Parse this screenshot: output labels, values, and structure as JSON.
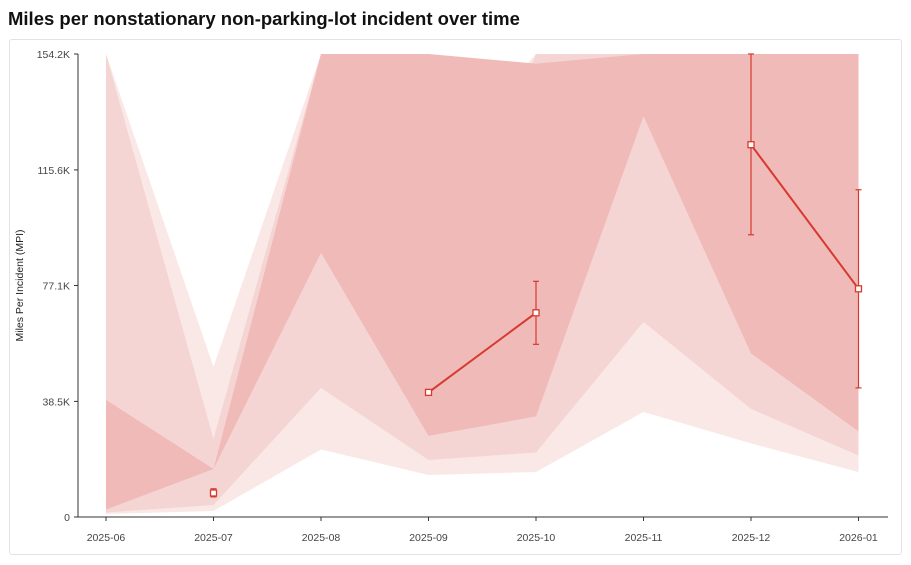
{
  "page": {
    "title": "Miles per nonstationary non-parking-lot incident over time"
  },
  "chart_data": {
    "type": "line",
    "title": "Miles per nonstationary non-parking-lot incident over time",
    "xlabel": "",
    "ylabel": "Miles Per Incident (MPI)",
    "x": [
      "2025-06",
      "2025-07",
      "2025-08",
      "2025-09",
      "2025-10",
      "2025-11",
      "2025-12",
      "2026-01"
    ],
    "ylim": [
      0,
      154200
    ],
    "yticks": [
      0,
      38500,
      77100,
      115600,
      154200
    ],
    "ytick_labels": [
      "0",
      "38.5K",
      "77.1K",
      "115.6K",
      "154.2K"
    ],
    "grid": false,
    "legend": "none",
    "colors": {
      "band_outer": "#f9e8e6",
      "band_middle": "#f5d5d3",
      "band_inner": "#efbab8",
      "line": "#d63a2f",
      "marker_fill": "#ffffff",
      "axis": "#333333"
    },
    "bands": {
      "outer": {
        "low": [
          1000,
          2000,
          22500,
          14000,
          15000,
          35000,
          24500,
          15000
        ],
        "high": [
          154200,
          50000,
          154200,
          114000,
          154200,
          154200,
          154200,
          154200
        ]
      },
      "middle": {
        "low": [
          1500,
          4000,
          43000,
          19000,
          21500,
          65000,
          36000,
          20500
        ],
        "high": [
          154200,
          26000,
          154200,
          69000,
          154200,
          154200,
          154200,
          154200
        ]
      },
      "inner": {
        "low": [
          2500,
          16000,
          88000,
          27000,
          33500,
          133500,
          54500,
          28500
        ],
        "high": [
          39000,
          16000,
          154200,
          154200,
          151000,
          154200,
          154200,
          154200
        ]
      }
    },
    "series": [
      {
        "values": [
          null,
          8000,
          null,
          41500,
          68000,
          null,
          124000,
          76000
        ],
        "error_low": [
          null,
          6700,
          null,
          null,
          57500,
          null,
          94000,
          43000
        ],
        "error_high": [
          null,
          9400,
          null,
          null,
          78500,
          null,
          154200,
          109000
        ]
      }
    ]
  }
}
